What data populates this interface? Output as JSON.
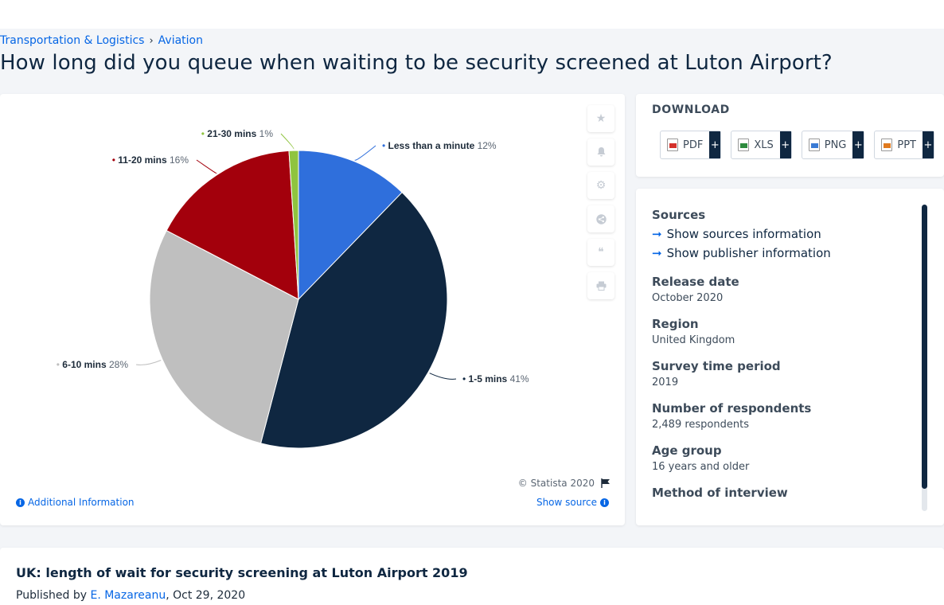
{
  "breadcrumb": [
    "Transportation & Logistics",
    "Aviation"
  ],
  "page_title": "How long did you queue when waiting to be security screened at Luton Airport?",
  "chart_data": {
    "type": "pie",
    "title": "",
    "unit": "%",
    "slices": [
      {
        "label": "Less than a minute",
        "value": 12,
        "color": "#2f6fdc"
      },
      {
        "label": "1-5 mins",
        "value": 41,
        "color": "#0f2741"
      },
      {
        "label": "6-10 mins",
        "value": 28,
        "color": "#bfbfbf"
      },
      {
        "label": "11-20 mins",
        "value": 16,
        "color": "#a3000c"
      },
      {
        "label": "21-30 mins",
        "value": 1,
        "color": "#8fc43f"
      }
    ],
    "start_angle_deg": 0,
    "direction": "clockwise"
  },
  "chart_footer": {
    "copyright": "© Statista 2020",
    "additional_info": "Additional Information",
    "show_source": "Show source"
  },
  "tools": [
    {
      "name": "favorite-star-icon"
    },
    {
      "name": "notification-bell-icon"
    },
    {
      "name": "settings-gear-icon"
    },
    {
      "name": "share-icon"
    },
    {
      "name": "cite-quote-icon"
    },
    {
      "name": "print-icon"
    }
  ],
  "download": {
    "title": "DOWNLOAD",
    "buttons": [
      {
        "label": "PDF",
        "color": "#d4322c"
      },
      {
        "label": "XLS",
        "color": "#2e8b3e"
      },
      {
        "label": "PNG",
        "color": "#3a7bd5"
      },
      {
        "label": "PPT",
        "color": "#e07a1f"
      }
    ]
  },
  "details": {
    "sources_label": "Sources",
    "show_sources": "Show sources information",
    "show_publisher": "Show publisher information",
    "release_date_label": "Release date",
    "release_date": "October 2020",
    "region_label": "Region",
    "region": "United Kingdom",
    "survey_period_label": "Survey time period",
    "survey_period": "2019",
    "respondents_label": "Number of respondents",
    "respondents": "2,489 respondents",
    "age_group_label": "Age group",
    "age_group": "16 years and older",
    "method_label": "Method of interview"
  },
  "bottom": {
    "title": "UK: length of wait for security screening at Luton Airport 2019",
    "published_prefix": "Published by",
    "author": "E. Mazareanu",
    "date": ", Oct 29, 2020"
  }
}
